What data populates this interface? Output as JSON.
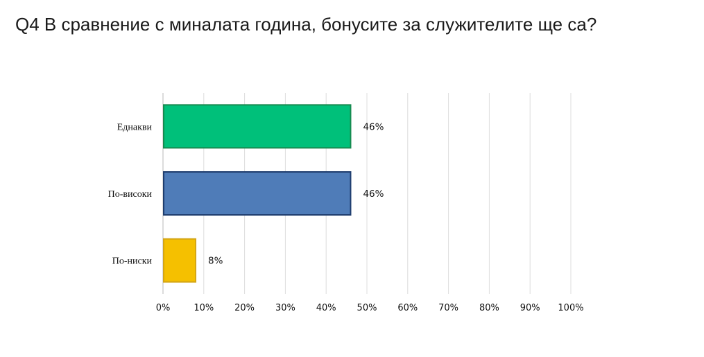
{
  "title": "Q4 В сравнение с миналата година, бонусите за служителите ще са?",
  "chart_data": {
    "type": "bar",
    "orientation": "horizontal",
    "categories": [
      "Еднакви",
      "По-високи",
      "По-ниски"
    ],
    "values": [
      46,
      46,
      8
    ],
    "data_labels": [
      "46%",
      "46%",
      "8%"
    ],
    "colors": [
      "#00c07a",
      "#4f7cb8",
      "#f5c000"
    ],
    "border_colors": [
      "#178a50",
      "#1f3d6e",
      "#d4a514"
    ],
    "xlim": [
      0,
      100
    ],
    "x_ticks": [
      "0%",
      "10%",
      "20%",
      "30%",
      "40%",
      "50%",
      "60%",
      "70%",
      "80%",
      "90%",
      "100%"
    ],
    "grid": true,
    "legend": "none"
  }
}
